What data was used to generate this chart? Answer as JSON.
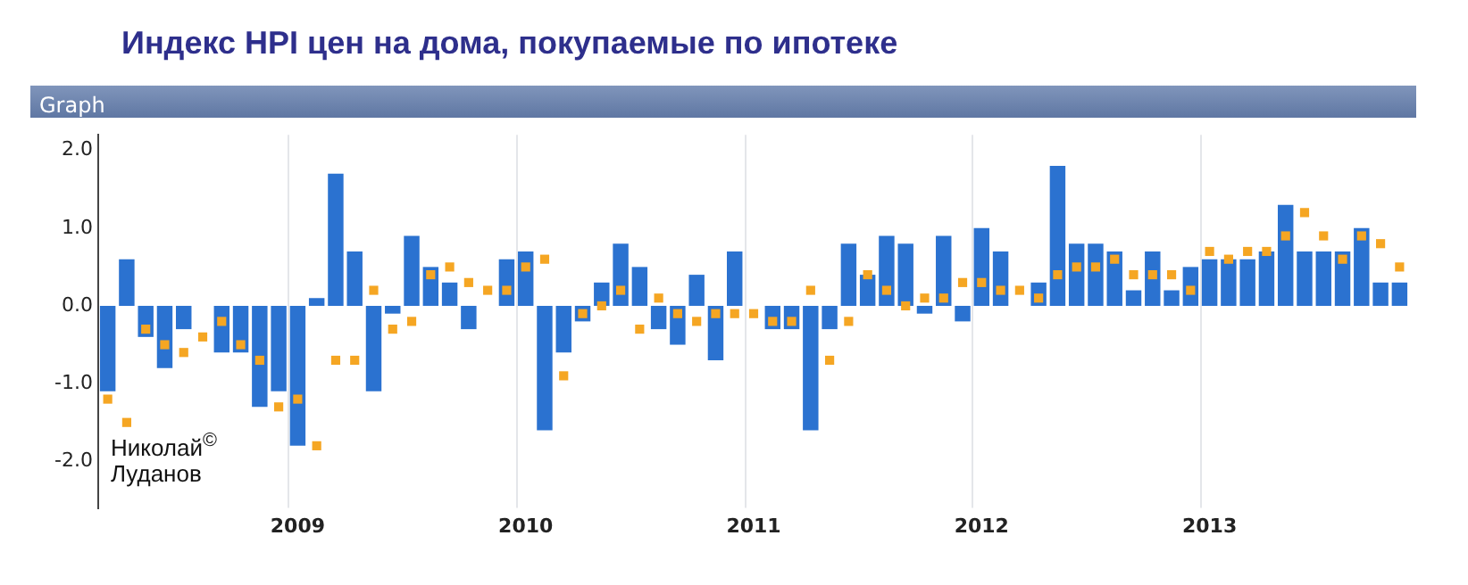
{
  "chart_data": {
    "type": "bar",
    "title": "Индекс HPI цен на дома, покупаемые по ипотеке",
    "annotations": [
      "Graph",
      "Николай$^{©}$ Луданов"
    ],
    "categories": [
      null,
      null,
      null,
      null,
      null,
      null,
      null,
      null,
      null,
      null,
      "2009",
      null,
      null,
      null,
      null,
      null,
      null,
      null,
      null,
      null,
      null,
      null,
      "2010",
      null,
      null,
      null,
      null,
      null,
      null,
      null,
      null,
      null,
      null,
      null,
      "2011",
      null,
      null,
      null,
      null,
      null,
      null,
      null,
      null,
      null,
      null,
      null,
      "2012",
      null,
      null,
      null,
      null,
      null,
      null,
      null,
      null,
      null,
      null,
      null,
      "2013",
      null,
      null,
      null,
      null,
      null,
      null,
      null,
      null,
      null,
      null
    ],
    "series": [
      {
        "type": "bar",
        "color": "#2b72d0",
        "values": [
          -1.1,
          0.6,
          -0.4,
          -0.8,
          -0.3,
          null,
          -0.6,
          -0.6,
          -1.3,
          -1.1,
          -1.8,
          0.1,
          1.7,
          0.7,
          -1.1,
          -0.1,
          0.9,
          0.5,
          0.3,
          -0.3,
          null,
          0.6,
          0.7,
          -1.6,
          -0.6,
          -0.2,
          0.3,
          0.8,
          0.5,
          -0.3,
          -0.5,
          0.4,
          -0.7,
          0.7,
          null,
          -0.3,
          -0.3,
          -1.6,
          -0.3,
          0.8,
          0.4,
          0.9,
          0.8,
          -0.1,
          0.9,
          -0.2,
          1.0,
          0.7,
          null,
          0.3,
          1.8,
          0.8,
          0.8,
          0.7,
          0.2,
          0.7,
          0.2,
          0.5,
          0.6,
          0.6,
          0.6,
          0.7,
          1.3,
          0.7,
          0.7,
          0.7,
          1.0,
          0.3,
          0.3
        ]
      },
      {
        "type": "scatter",
        "marker": "square",
        "color": "#f5a623",
        "values": [
          -1.2,
          -1.5,
          -0.3,
          -0.5,
          -0.6,
          -0.4,
          -0.2,
          -0.5,
          -0.7,
          -1.3,
          -1.2,
          -1.8,
          -0.7,
          -0.7,
          0.2,
          -0.3,
          -0.2,
          0.4,
          0.5,
          0.3,
          0.2,
          0.2,
          0.5,
          0.6,
          -0.9,
          -0.1,
          0.0,
          0.2,
          -0.3,
          0.1,
          -0.1,
          -0.2,
          -0.1,
          -0.1,
          -0.1,
          -0.2,
          -0.2,
          0.2,
          -0.7,
          -0.2,
          0.4,
          0.2,
          0.0,
          0.1,
          0.1,
          0.3,
          0.3,
          0.2,
          0.2,
          0.1,
          0.4,
          0.5,
          0.5,
          0.6,
          0.4,
          0.4,
          0.4,
          0.2,
          0.7,
          0.6,
          0.7,
          0.7,
          0.9,
          1.2,
          0.9,
          0.6,
          0.9,
          0.8,
          0.5
        ]
      }
    ],
    "ylim": [
      -2.6,
      2.2
    ],
    "yticks": [
      {
        "value": 2,
        "label": "2.0"
      },
      {
        "value": 1,
        "label": "1.0"
      },
      {
        "value": 0,
        "label": "0.0"
      },
      {
        "value": -1,
        "label": "-1.0"
      },
      {
        "value": -2,
        "label": "-2.0"
      }
    ],
    "grid": "x",
    "legend": false
  }
}
